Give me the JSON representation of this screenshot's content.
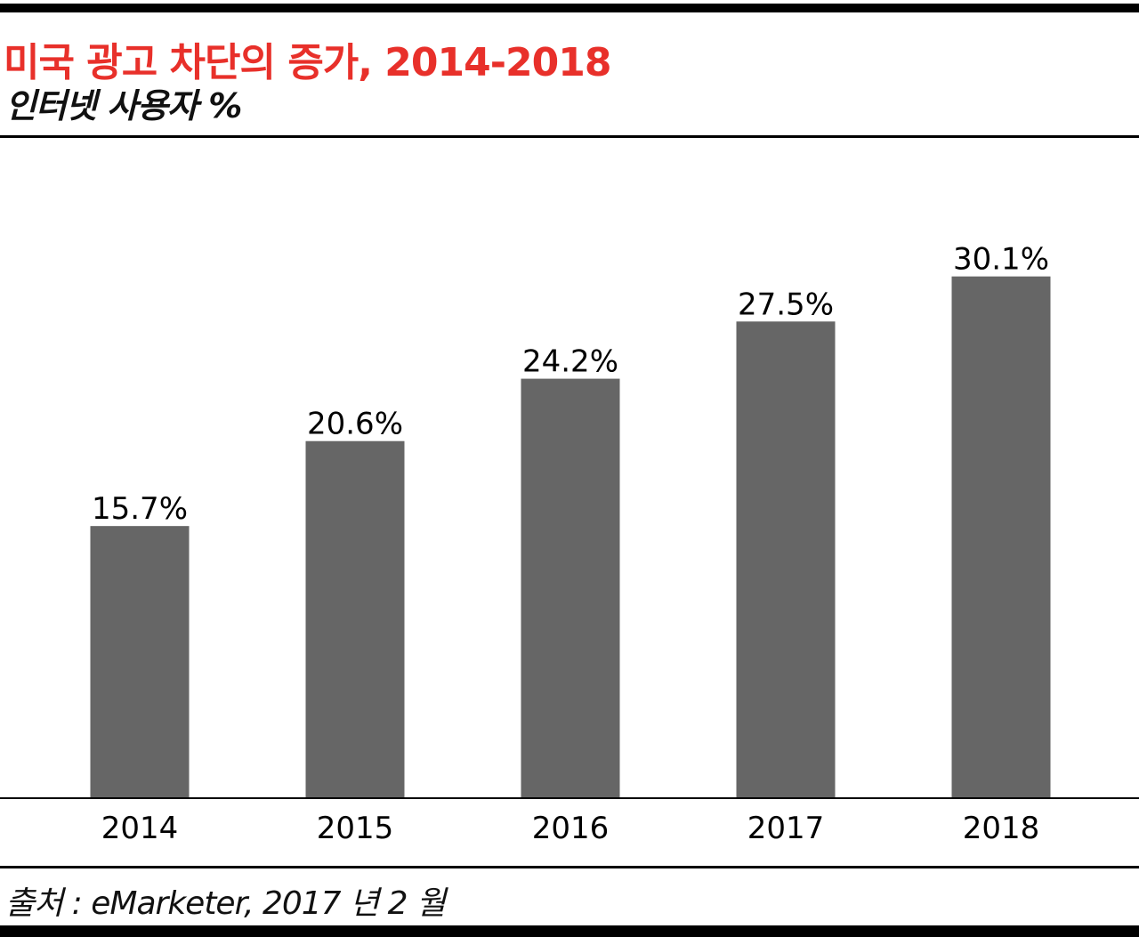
{
  "chart_data": {
    "type": "bar",
    "title": "미국 광고 차단의 증가, 2014-2018",
    "subtitle": "인터넷 사용자 %",
    "categories": [
      "2014",
      "2015",
      "2016",
      "2017",
      "2018"
    ],
    "values": [
      15.7,
      20.6,
      24.2,
      27.5,
      30.1
    ],
    "data_labels": [
      "15.7%",
      "20.6%",
      "24.2%",
      "27.5%",
      "30.1%"
    ],
    "xlabel": "",
    "ylabel": "",
    "ylim": [
      0,
      36
    ],
    "grid": false,
    "legend": "none",
    "source": "출처 : eMarketer, 2017 년 2 월",
    "colors": {
      "bar": "#666666",
      "title": "#e8302a"
    }
  }
}
